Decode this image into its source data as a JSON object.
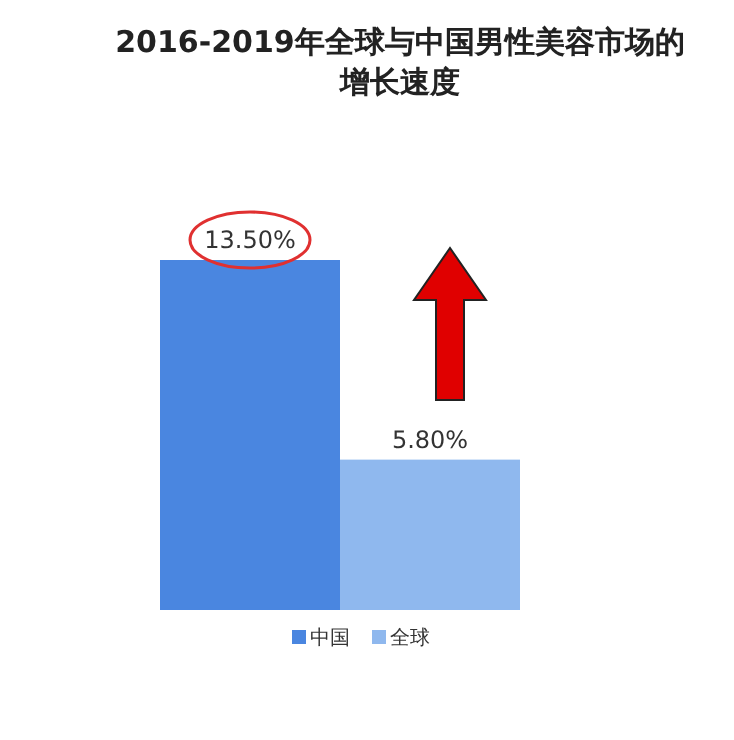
{
  "chart_data": {
    "type": "bar",
    "title": "2016-2019年全球与中国男性美容市场的增长速度",
    "categories": [
      null
    ],
    "series": [
      {
        "name": "中国",
        "color": "#4a86e0",
        "values": [
          13.5
        ],
        "value_labels": [
          "13.50%"
        ]
      },
      {
        "name": "全球",
        "color": "#8fb8ee",
        "values": [
          5.8
        ],
        "value_labels": [
          "5.80%"
        ]
      }
    ],
    "legend": "bottom"
  }
}
